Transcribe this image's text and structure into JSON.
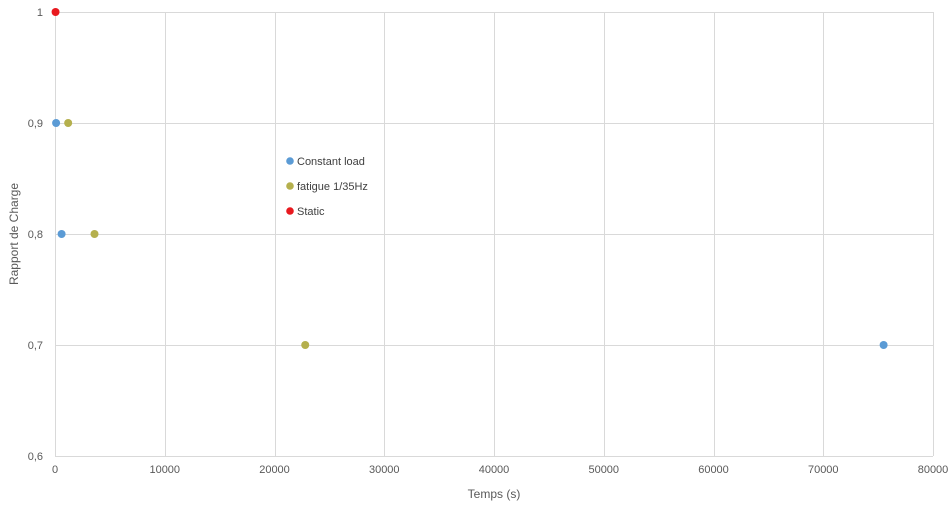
{
  "chart_data": {
    "type": "scatter",
    "title": "",
    "xlabel": "Temps (s)",
    "ylabel": "Rapport de Charge",
    "xlim": [
      0,
      80000
    ],
    "ylim": [
      0.6,
      1.0
    ],
    "x_ticks": [
      0,
      10000,
      20000,
      30000,
      40000,
      50000,
      60000,
      70000,
      80000
    ],
    "x_tick_labels": [
      "0",
      "10000",
      "20000",
      "30000",
      "40000",
      "50000",
      "60000",
      "70000",
      "80000"
    ],
    "y_ticks": [
      0.6,
      0.7,
      0.8,
      0.9,
      1.0
    ],
    "y_tick_labels": [
      "0,6",
      "0,7",
      "0,8",
      "0,9",
      "1"
    ],
    "grid": true,
    "legend_position": "inside-center-left",
    "series": [
      {
        "name": "Constant load",
        "color": "#5b9bd5",
        "points": [
          {
            "x": 100,
            "y": 0.9
          },
          {
            "x": 600,
            "y": 0.8
          },
          {
            "x": 75500,
            "y": 0.7
          }
        ]
      },
      {
        "name": "fatigue 1/35Hz",
        "color": "#b5b04d",
        "points": [
          {
            "x": 1200,
            "y": 0.9
          },
          {
            "x": 3600,
            "y": 0.8
          },
          {
            "x": 22800,
            "y": 0.7
          }
        ]
      },
      {
        "name": "Static",
        "color": "#e8191f",
        "points": [
          {
            "x": 50,
            "y": 1.0
          }
        ]
      }
    ]
  }
}
